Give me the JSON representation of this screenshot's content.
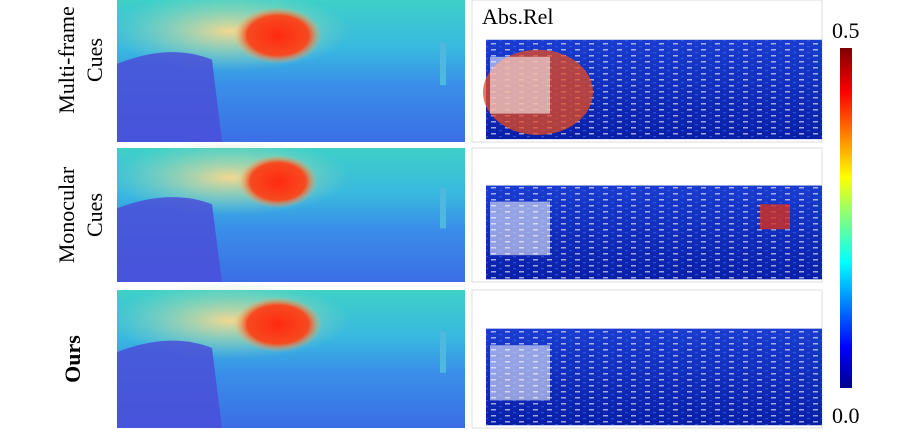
{
  "rows": [
    {
      "label_lines": [
        "Multi-frame",
        "Cues"
      ],
      "bold": false
    },
    {
      "label_lines": [
        "Monocular",
        "Cues"
      ],
      "bold": false
    },
    {
      "label_lines": [
        "Ours"
      ],
      "bold": true
    }
  ],
  "error_title": "Abs.Rel",
  "colorbar": {
    "max_label": "0.5",
    "min_label": "0.0"
  }
}
